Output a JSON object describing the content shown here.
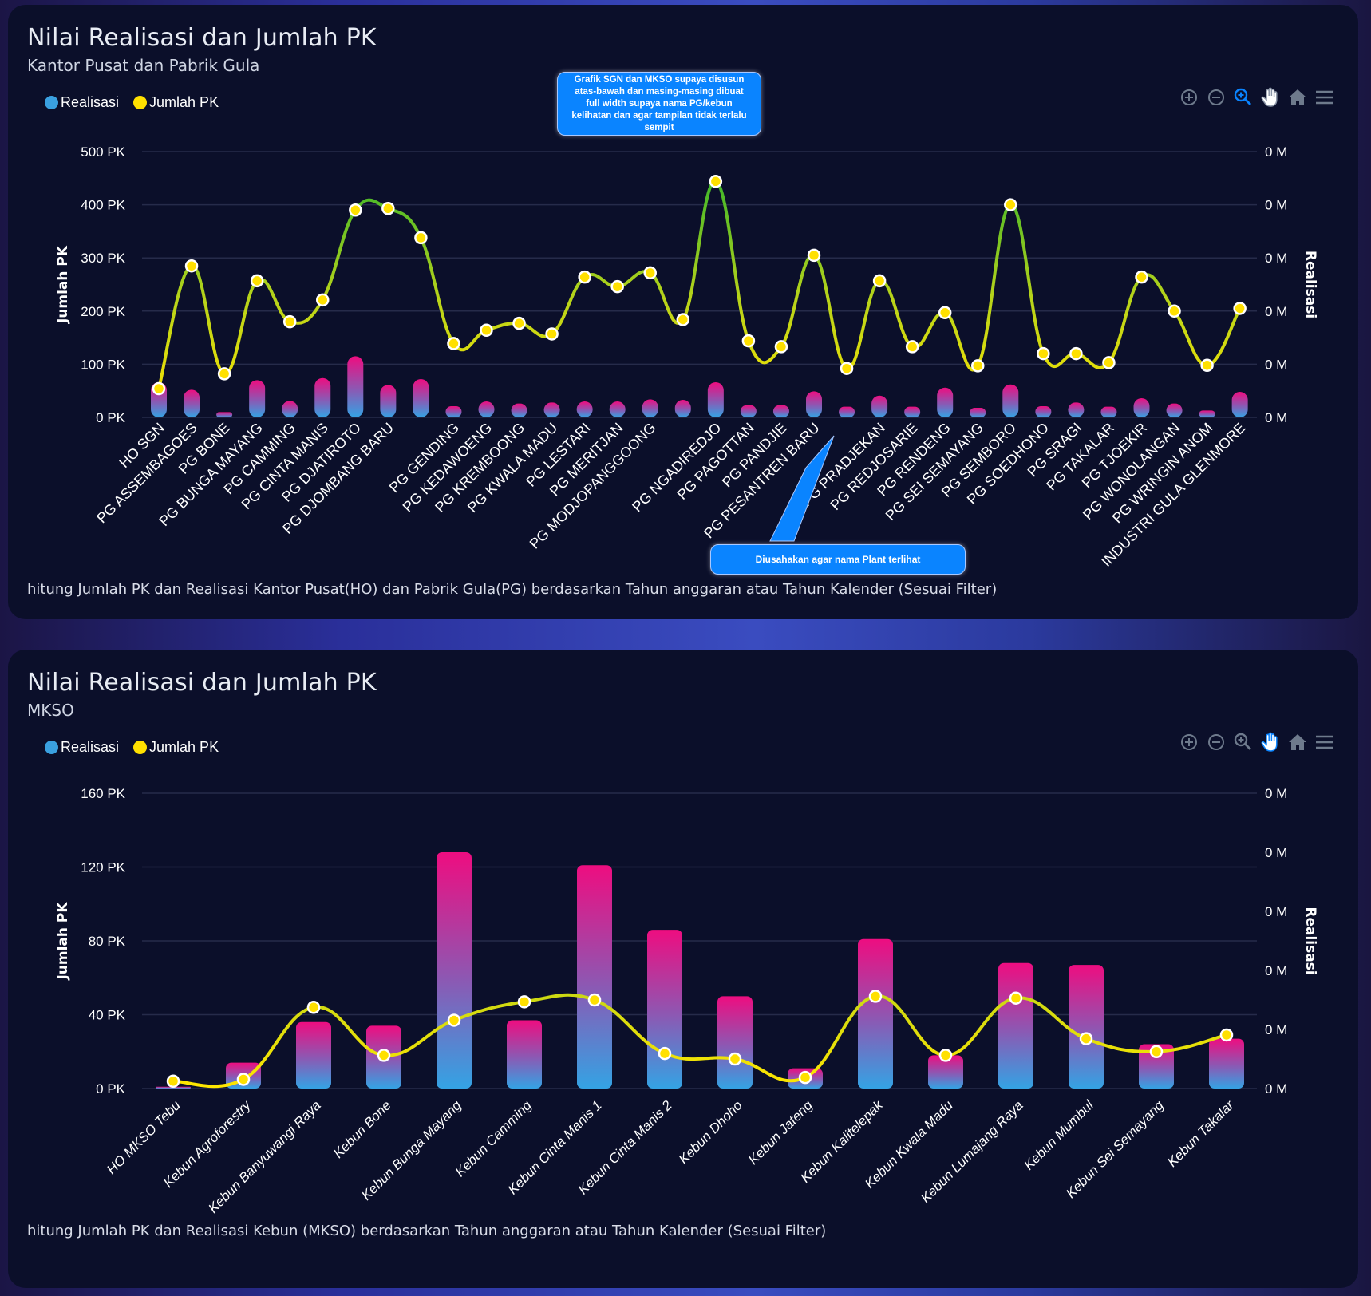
{
  "legend": {
    "realisasi": {
      "label": "Realisasi",
      "color": "#3aa0e0"
    },
    "jumlah_pk": {
      "label": "Jumlah PK",
      "color": "#ffe000"
    }
  },
  "toolbar": [
    "zoom-in",
    "zoom-out",
    "selection-zoom",
    "pan",
    "reset-home",
    "menu"
  ],
  "annotations": {
    "top_callout": "Grafik SGN dan MKSO supaya disusun atas-bawah dan masing-masing dibuat full width supaya nama PG/kebun kelihatan dan agar tampilan tidak terlalu sempit",
    "label_callout": "Diusahakan agar nama Plant terlihat"
  },
  "chart_data": [
    {
      "type": "bar",
      "title": "Nilai Realisasi dan Jumlah PK",
      "subtitle": "Kantor Pusat dan Pabrik Gula",
      "footer": "hitung Jumlah PK dan Realisasi Kantor Pusat(HO) dan Pabrik Gula(PG) berdasarkan Tahun anggaran atau Tahun Kalender (Sesuai Filter)",
      "active_tool": "selection-zoom",
      "ylabel": "Jumlah PK",
      "y2label": "Realisasi",
      "ylim": [
        0,
        500
      ],
      "yticks": [
        "0 PK",
        "100 PK",
        "200 PK",
        "300 PK",
        "400 PK",
        "500 PK"
      ],
      "y2ticks": [
        "0 M",
        "0 M",
        "0 M",
        "0 M",
        "0 M",
        "0 M"
      ],
      "grid": true,
      "legend_position": "top-left",
      "categories": [
        "HO SGN",
        "PG ASSEMBAGOES",
        "PG BONE",
        "PG BUNGA MAYANG",
        "PG CAMMING",
        "PG CINTA MANIS",
        "PG DJATIROTO",
        "PG DJOMBANG BARU",
        "",
        "PG GENDING",
        "PG KEDAWOENG",
        "PG KREMBOONG",
        "PG KWALA MADU",
        "PG LESTARI",
        "PG MERITJAN",
        "PG MODJOPANGGOONG",
        "",
        "PG NGADIREDJO",
        "PG PAGOTTAN",
        "PG PANDJIE",
        "PG PESANTREN BARU",
        "",
        "PG PRADJEKAN",
        "PG REDJOSARIE",
        "PG RENDENG",
        "PG SEI SEMAYANG",
        "PG SEMBORO",
        "PG SOEDHONO",
        "PG SRAGI",
        "PG TAKALAR",
        "PG TJOEKIR",
        "PG WONOLANGAN",
        "PG WRINGIN ANOM",
        "INDUSTRI GULA GLENMORE"
      ],
      "series": [
        {
          "name": "Realisasi",
          "type": "bar",
          "values": [
            66,
            52,
            10,
            70,
            31,
            74,
            115,
            61,
            72,
            21,
            30,
            26,
            28,
            30,
            30,
            34,
            33,
            66,
            23,
            23,
            49,
            20,
            41,
            20,
            56,
            18,
            62,
            21,
            28,
            20,
            36,
            26,
            13,
            48
          ]
        },
        {
          "name": "Jumlah PK",
          "type": "line",
          "values": [
            54,
            285,
            82,
            257,
            180,
            221,
            390,
            393,
            338,
            139,
            164,
            177,
            157,
            264,
            246,
            272,
            184,
            444,
            144,
            133,
            305,
            92,
            257,
            133,
            197,
            97,
            400,
            120,
            120,
            103,
            264,
            200,
            98,
            205
          ]
        }
      ]
    },
    {
      "type": "bar",
      "title": "Nilai Realisasi dan Jumlah PK",
      "subtitle": "MKSO",
      "footer": "hitung Jumlah PK dan Realisasi Kebun (MKSO) berdasarkan Tahun anggaran atau Tahun Kalender (Sesuai Filter)",
      "active_tool": "pan",
      "ylabel": "Jumlah PK",
      "y2label": "Realisasi",
      "ylim": [
        0,
        160
      ],
      "yticks": [
        "0 PK",
        "40 PK",
        "80 PK",
        "120 PK",
        "160 PK"
      ],
      "y2ticks": [
        "0 M",
        "0 M",
        "0 M",
        "0 M",
        "0 M",
        "0 M"
      ],
      "grid": true,
      "legend_position": "top-left",
      "categories": [
        "HO MKSO Tebu",
        "Kebun Agroforestry",
        "Kebun Banyuwangi Raya",
        "Kebun Bone",
        "Kebun Bunga Mayang",
        "Kebun Camming",
        "Kebun Cinta Manis 1",
        "Kebun Cinta Manis 2",
        "Kebun Dhoho",
        "Kebun Jateng",
        "Kebun Kalitelepak",
        "Kebun Kwala Madu",
        "Kebun Lumajang Raya",
        "Kebun Mumbul",
        "Kebun Sei Semayang",
        "Kebun Takalar"
      ],
      "series": [
        {
          "name": "Realisasi",
          "type": "bar",
          "values": [
            1,
            14,
            36,
            34,
            128,
            37,
            121,
            86,
            50,
            11,
            81,
            18,
            68,
            67,
            24,
            27
          ]
        },
        {
          "name": "Jumlah PK",
          "type": "line",
          "values": [
            4,
            5,
            44,
            18,
            37,
            47,
            48,
            19,
            16,
            6,
            50,
            18,
            49,
            27,
            20,
            29
          ]
        }
      ]
    }
  ]
}
